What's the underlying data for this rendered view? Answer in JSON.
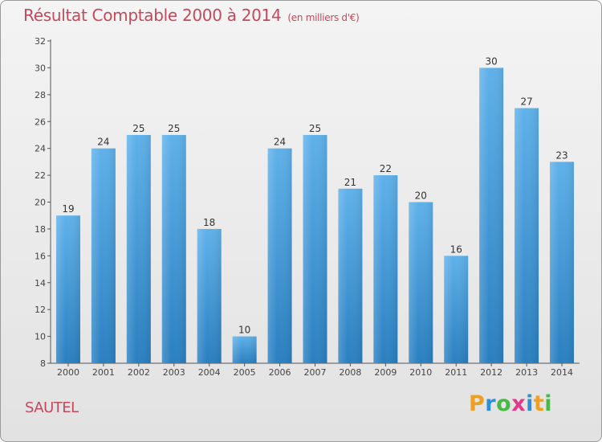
{
  "page": {
    "title": "Résultat Comptable 2000 à 2014",
    "title_unit": "(en milliers d'€)",
    "commune": "SAUTEL",
    "logo": {
      "letters": [
        "P",
        "r",
        "o",
        "x",
        "i",
        "t",
        "i"
      ],
      "colors": [
        "#f0a020",
        "#2d8fd8",
        "#49b848",
        "#e03a8a",
        "#2d8fd8",
        "#f0a020",
        "#49b848"
      ]
    }
  },
  "chart_data": {
    "type": "bar",
    "title": "Résultat Comptable 2000 à 2014",
    "categories": [
      "2000",
      "2001",
      "2002",
      "2003",
      "2004",
      "2005",
      "2006",
      "2007",
      "2008",
      "2009",
      "2010",
      "2011",
      "2012",
      "2013",
      "2014"
    ],
    "values": [
      19,
      24,
      25,
      25,
      18,
      10,
      24,
      25,
      21,
      22,
      20,
      16,
      30,
      27,
      23
    ],
    "ylim": [
      8,
      32
    ],
    "yticks": [
      8,
      10,
      12,
      14,
      16,
      18,
      20,
      22,
      24,
      26,
      28,
      30,
      32
    ],
    "grid": false,
    "bar_color": "#3f97d9"
  }
}
